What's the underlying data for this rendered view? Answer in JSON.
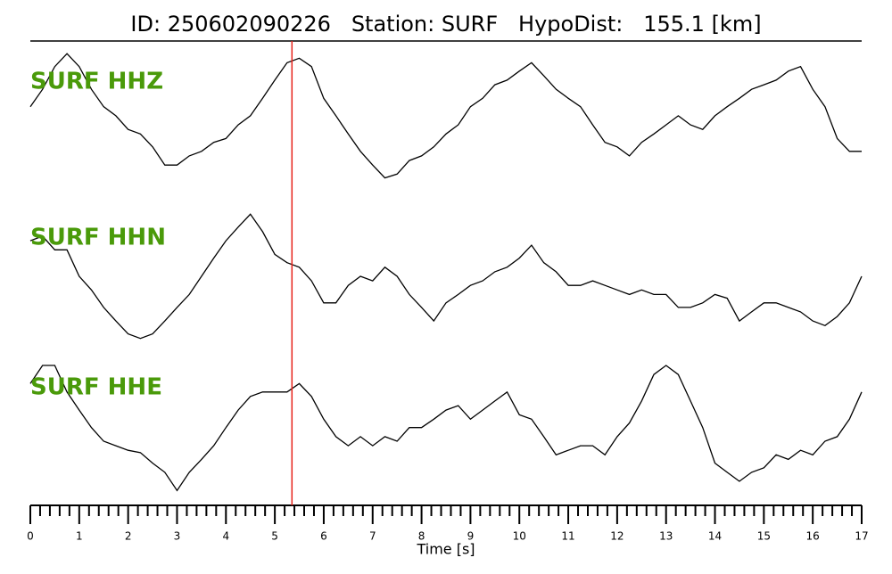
{
  "chart_data": {
    "type": "line",
    "title": "ID: 250602090226   Station: SURF   HypoDist:   155.1 [km]",
    "xlabel": "Time [s]",
    "x": [
      0,
      0.25,
      0.5,
      0.75,
      1,
      1.25,
      1.5,
      1.75,
      2,
      2.25,
      2.5,
      2.75,
      3,
      3.25,
      3.5,
      3.75,
      4,
      4.25,
      4.5,
      4.75,
      5,
      5.25,
      5.5,
      5.75,
      6,
      6.25,
      6.5,
      6.75,
      7,
      7.25,
      7.5,
      7.75,
      8,
      8.25,
      8.5,
      8.75,
      9,
      9.25,
      9.5,
      9.75,
      10,
      10.25,
      10.5,
      10.75,
      11,
      11.25,
      11.5,
      11.75,
      12,
      12.25,
      12.5,
      12.75,
      13,
      13.25,
      13.5,
      13.75,
      14,
      14.25,
      14.5,
      14.75,
      15,
      15.25,
      15.5,
      15.75,
      16,
      16.25,
      16.5,
      16.75,
      17
    ],
    "xlim": [
      0,
      17
    ],
    "xticks": [
      0,
      1,
      2,
      3,
      4,
      5,
      6,
      7,
      8,
      9,
      10,
      11,
      12,
      13,
      14,
      15,
      16,
      17
    ],
    "xminorticks": [
      0.2,
      0.4,
      0.6,
      0.8,
      1.2,
      1.4,
      1.6,
      1.8,
      2.2,
      2.4,
      2.6,
      2.8,
      3.2,
      3.4,
      3.6,
      3.8,
      4.2,
      4.4,
      4.6,
      4.8,
      5.2,
      5.4,
      5.6,
      5.8,
      6.2,
      6.4,
      6.6,
      6.8,
      7.2,
      7.4,
      7.6,
      7.8,
      8.2,
      8.4,
      8.6,
      8.8,
      9.2,
      9.4,
      9.6,
      9.8,
      10.2,
      10.4,
      10.6,
      10.8,
      11.2,
      11.4,
      11.6,
      11.8,
      12.2,
      12.4,
      12.6,
      12.8,
      13.2,
      13.4,
      13.6,
      13.8,
      14.2,
      14.4,
      14.6,
      14.8,
      15.2,
      15.4,
      15.6,
      15.8,
      16.2,
      16.4,
      16.6,
      16.8
    ],
    "ylim": [
      -1,
      1
    ],
    "label_color": "#4a9a0a",
    "pick": {
      "x": 5.35,
      "color": "#e8241c"
    },
    "series": [
      {
        "name": "SURF HHZ",
        "color": "#000000",
        "values": [
          0.18,
          0.41,
          0.71,
          0.88,
          0.71,
          0.41,
          0.18,
          0.06,
          -0.12,
          -0.18,
          -0.35,
          -0.59,
          -0.59,
          -0.47,
          -0.41,
          -0.29,
          -0.24,
          -0.06,
          0.06,
          0.29,
          0.53,
          0.76,
          0.82,
          0.71,
          0.29,
          0.06,
          -0.18,
          -0.41,
          -0.59,
          -0.76,
          -0.71,
          -0.53,
          -0.47,
          -0.35,
          -0.18,
          -0.06,
          0.18,
          0.29,
          0.47,
          0.53,
          0.65,
          0.76,
          0.59,
          0.41,
          0.29,
          0.18,
          -0.06,
          -0.29,
          -0.35,
          -0.47,
          -0.29,
          -0.18,
          -0.06,
          0.06,
          -0.06,
          -0.12,
          0.06,
          0.18,
          0.29,
          0.41,
          0.47,
          0.53,
          0.65,
          0.71,
          0.41,
          0.18,
          -0.24,
          -0.41,
          -0.41
        ]
      },
      {
        "name": "SURF HHN",
        "color": "#000000",
        "values": [
          0.47,
          0.53,
          0.35,
          0.35,
          0,
          -0.18,
          -0.41,
          -0.59,
          -0.76,
          -0.82,
          -0.76,
          -0.59,
          -0.41,
          -0.24,
          0,
          0.24,
          0.47,
          0.65,
          0.82,
          0.59,
          0.29,
          0.18,
          0.12,
          -0.06,
          -0.35,
          -0.35,
          -0.12,
          0,
          -0.06,
          0.12,
          0,
          -0.24,
          -0.41,
          -0.59,
          -0.35,
          -0.24,
          -0.12,
          -0.06,
          0.06,
          0.12,
          0.24,
          0.41,
          0.18,
          0.06,
          -0.12,
          -0.12,
          -0.06,
          -0.12,
          -0.18,
          -0.24,
          -0.18,
          -0.24,
          -0.24,
          -0.41,
          -0.41,
          -0.35,
          -0.24,
          -0.29,
          -0.59,
          -0.47,
          -0.35,
          -0.35,
          -0.41,
          -0.47,
          -0.59,
          -0.65,
          -0.53,
          -0.35,
          0
        ]
      },
      {
        "name": "SURF HHE",
        "color": "#000000",
        "values": [
          0.56,
          0.8,
          0.8,
          0.45,
          0.21,
          -0.02,
          -0.2,
          -0.26,
          -0.32,
          -0.35,
          -0.49,
          -0.61,
          -0.85,
          -0.61,
          -0.44,
          -0.26,
          -0.02,
          0.21,
          0.39,
          0.45,
          0.45,
          0.45,
          0.56,
          0.39,
          0.09,
          -0.14,
          -0.26,
          -0.14,
          -0.26,
          -0.14,
          -0.2,
          -0.02,
          -0.02,
          0.09,
          0.21,
          0.27,
          0.09,
          0.21,
          0.33,
          0.45,
          0.15,
          0.09,
          -0.14,
          -0.38,
          -0.32,
          -0.26,
          -0.26,
          -0.38,
          -0.14,
          0.04,
          0.33,
          0.68,
          0.8,
          0.68,
          0.33,
          -0.02,
          -0.49,
          -0.61,
          -0.73,
          -0.61,
          -0.55,
          -0.38,
          -0.44,
          -0.32,
          -0.38,
          -0.2,
          -0.14,
          0.09,
          0.45
        ]
      }
    ]
  }
}
